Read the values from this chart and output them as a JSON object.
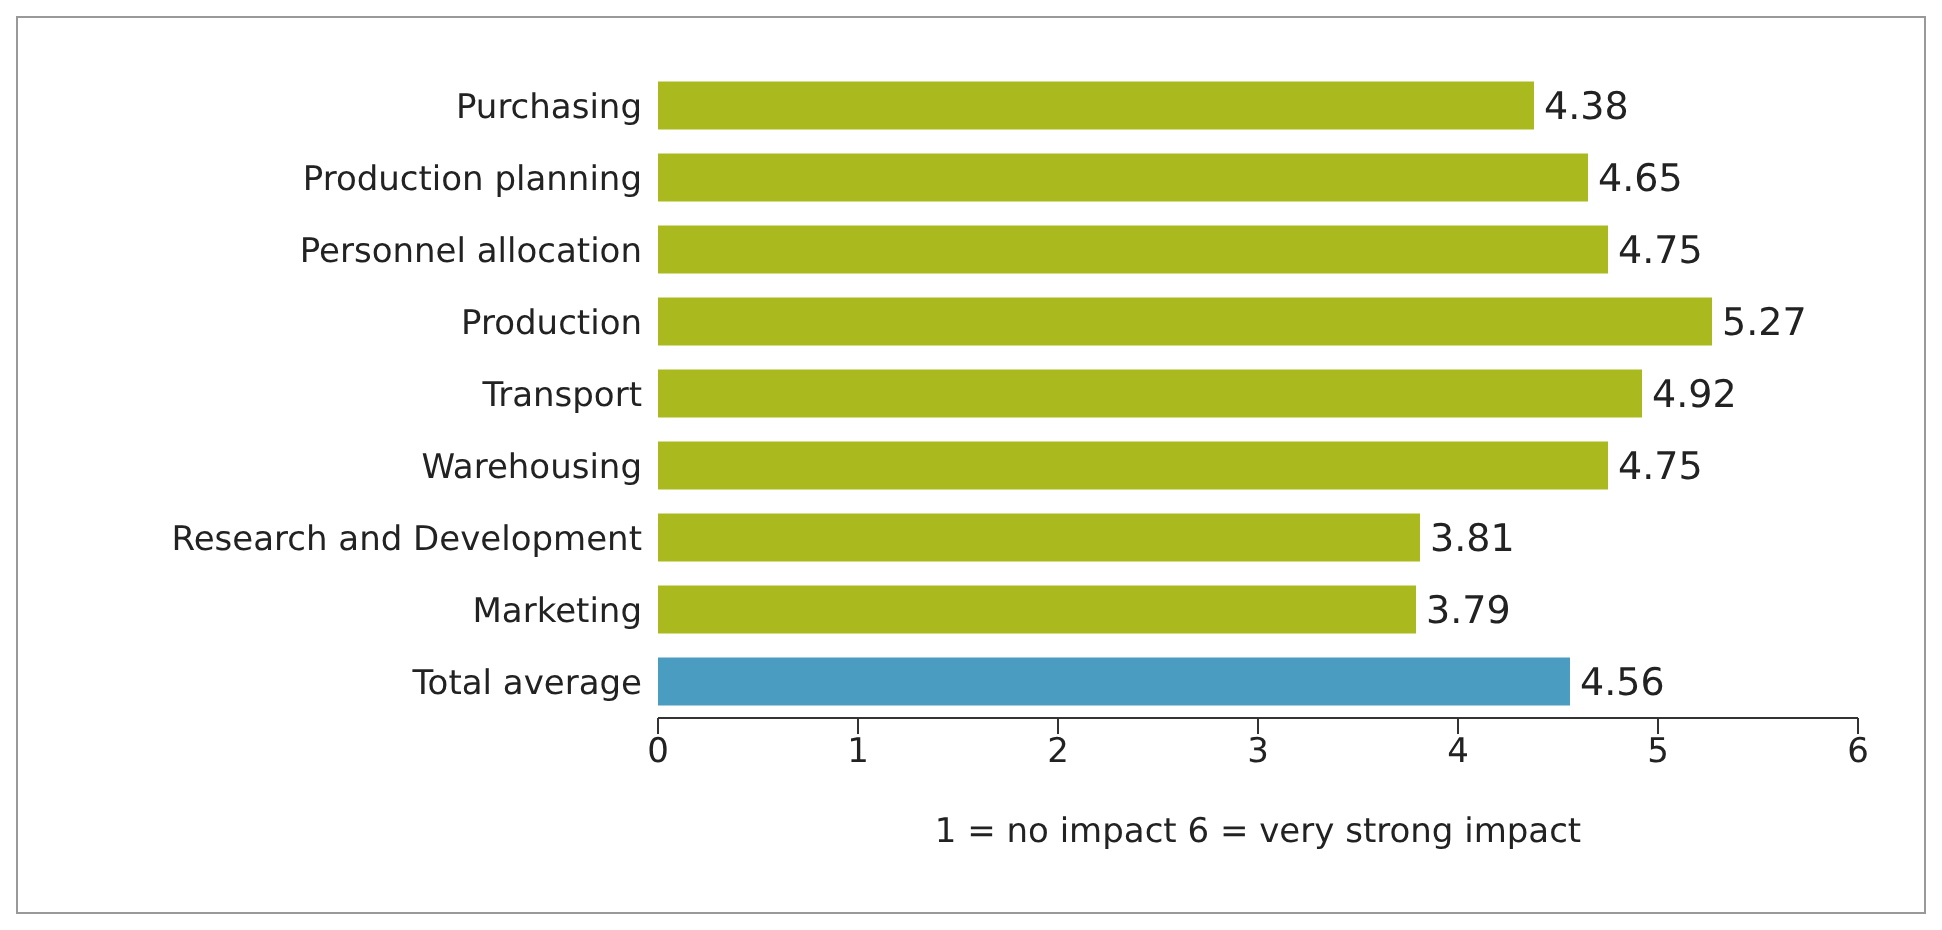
{
  "chart_data": {
    "type": "bar",
    "orientation": "horizontal",
    "categories": [
      "Purchasing",
      "Production planning",
      "Personnel allocation",
      "Production",
      "Transport",
      "Warehousing",
      "Research and Development",
      "Marketing",
      "Total average"
    ],
    "values": [
      4.38,
      4.65,
      4.75,
      5.27,
      4.92,
      4.75,
      3.81,
      3.79,
      4.56
    ],
    "colors": [
      "#a9b91e",
      "#a9b91e",
      "#a9b91e",
      "#a9b91e",
      "#a9b91e",
      "#a9b91e",
      "#a9b91e",
      "#a9b91e",
      "#4a9dc0"
    ],
    "xlim": [
      0,
      6
    ],
    "xticks": [
      0,
      1,
      2,
      3,
      4,
      5,
      6
    ],
    "xlabel": "1 = no impact   6 = very strong impact",
    "data_labels": true,
    "grid": false,
    "legend": false
  }
}
